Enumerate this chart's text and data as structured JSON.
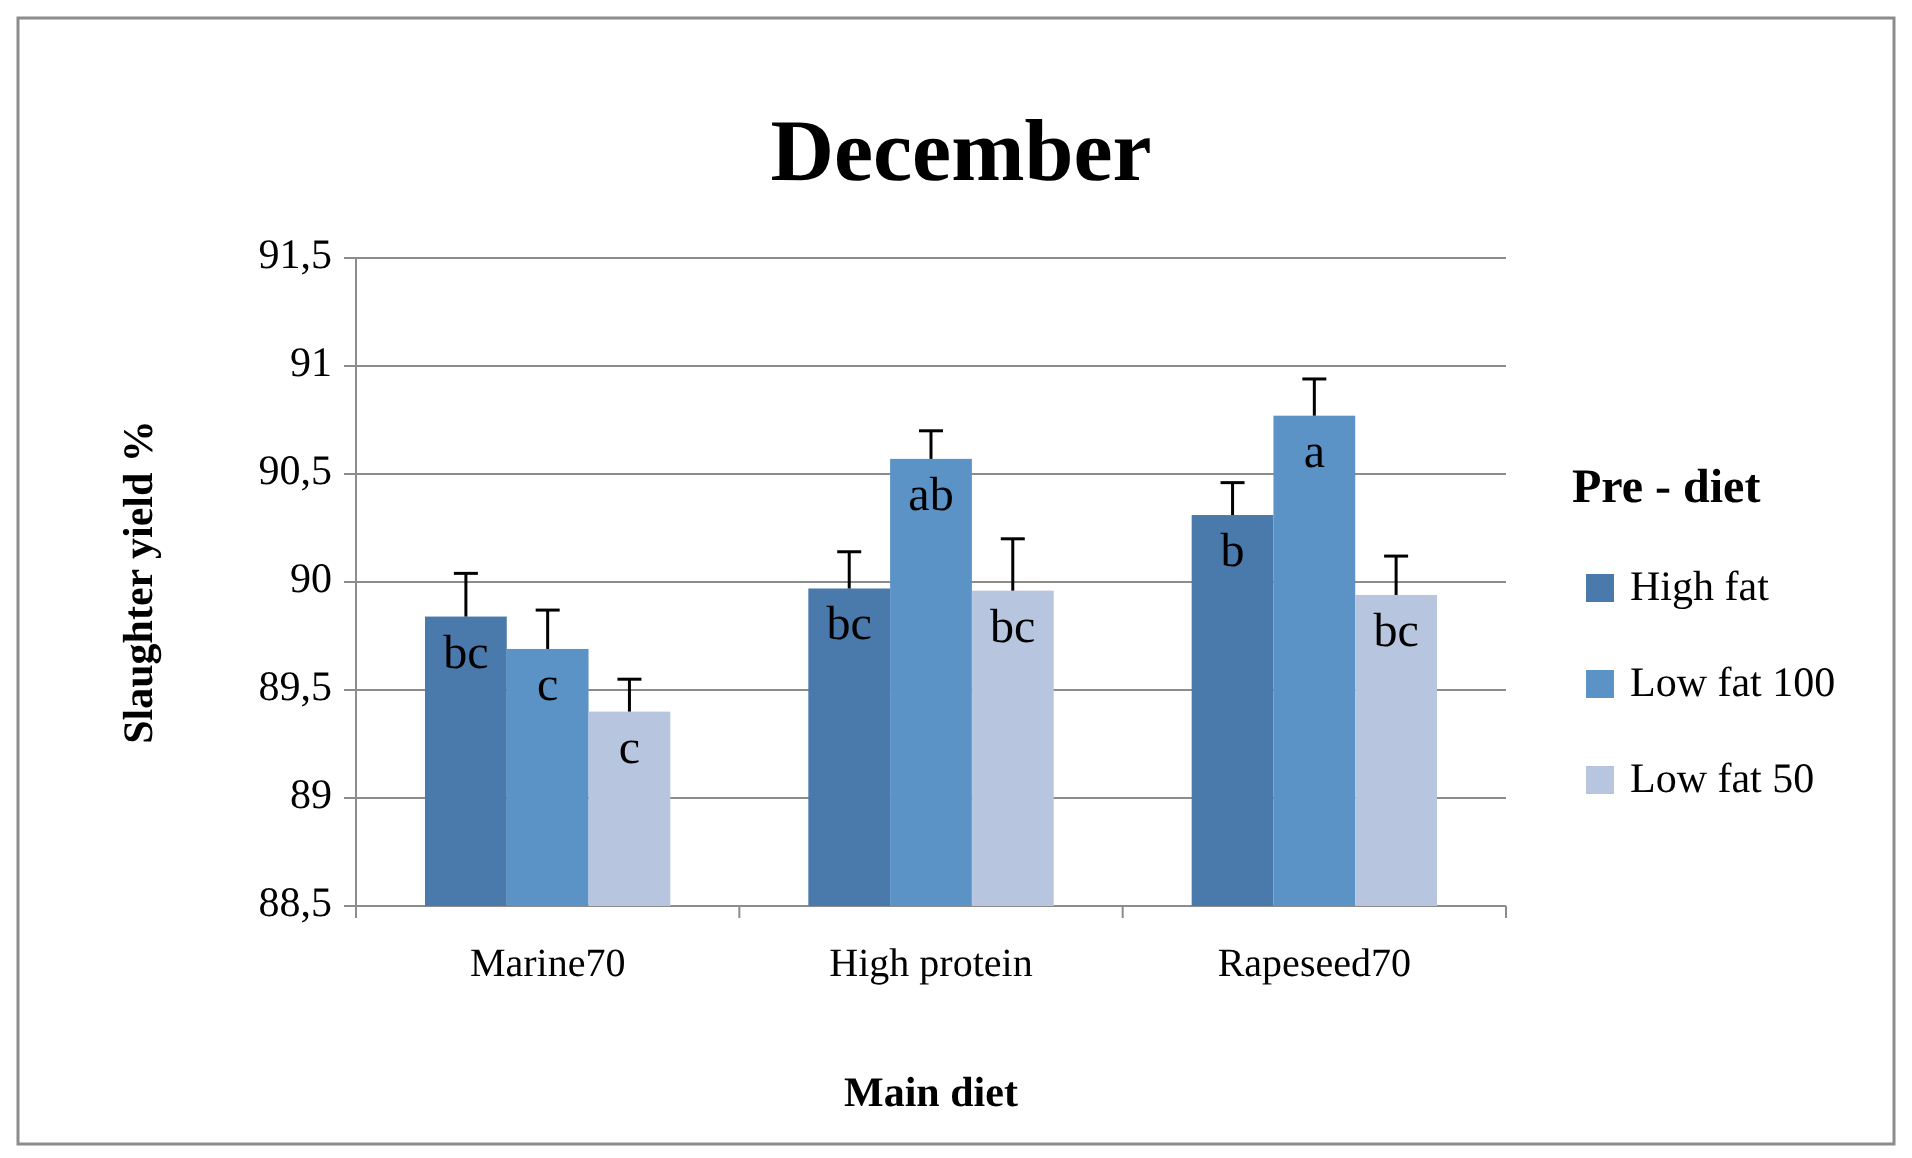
{
  "chart_data": {
    "type": "bar",
    "title": "December",
    "xlabel": "Main diet",
    "ylabel": "Slaughter yield %",
    "legend_title": "Pre - diet",
    "legend": "right",
    "grid": "y",
    "categories": [
      "Marine70",
      "High protein",
      "Rapeseed70"
    ],
    "series": [
      {
        "name": "High fat",
        "color": "#4a7aab",
        "values": [
          89.84,
          89.97,
          90.31
        ],
        "errors": [
          [
            89.84,
            90.04
          ],
          [
            89.97,
            90.14
          ],
          [
            90.31,
            90.46
          ]
        ]
      },
      {
        "name": "Low fat 100",
        "color": "#5b93c7",
        "values": [
          89.69,
          90.57,
          90.77
        ],
        "errors": [
          [
            89.69,
            89.87
          ],
          [
            90.57,
            90.7
          ],
          [
            90.77,
            90.94
          ]
        ]
      },
      {
        "name": "Low fat 50",
        "color": "#b8c5df",
        "values": [
          89.4,
          89.96,
          89.94
        ],
        "errors": [
          [
            89.4,
            89.55
          ],
          [
            89.96,
            90.2
          ],
          [
            89.94,
            90.12
          ]
        ]
      }
    ],
    "ylim": [
      88.5,
      91.5
    ],
    "yticks": [
      {
        "value": 88.5,
        "label": "88,5"
      },
      {
        "value": 89,
        "label": "89"
      },
      {
        "value": 89.5,
        "label": "89,5"
      },
      {
        "value": 90,
        "label": "90"
      },
      {
        "value": 90.5,
        "label": "90,5"
      },
      {
        "value": 91,
        "label": "91"
      },
      {
        "value": 91.5,
        "label": "91,5"
      }
    ],
    "annotations": [
      "bc",
      "c",
      "c",
      "bc",
      "ab",
      "bc",
      "b",
      "a",
      "bc"
    ]
  }
}
